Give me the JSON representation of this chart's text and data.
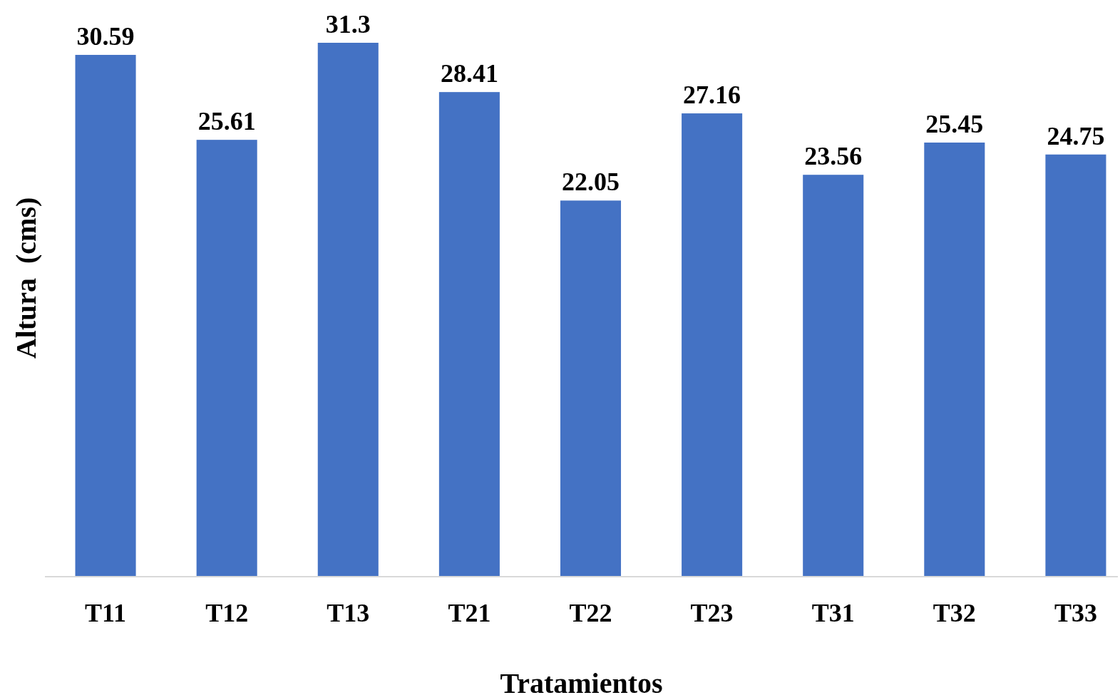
{
  "chart_data": {
    "type": "bar",
    "xlabel": "Tratamientos",
    "ylabel": "Altura  (cms)",
    "categories": [
      "T11",
      "T12",
      "T13",
      "T21",
      "T22",
      "T23",
      "T31",
      "T32",
      "T33"
    ],
    "values": [
      30.59,
      25.61,
      31.3,
      28.41,
      22.05,
      27.16,
      23.56,
      25.45,
      24.75
    ],
    "color": "#4472c4",
    "data_labels": true
  }
}
